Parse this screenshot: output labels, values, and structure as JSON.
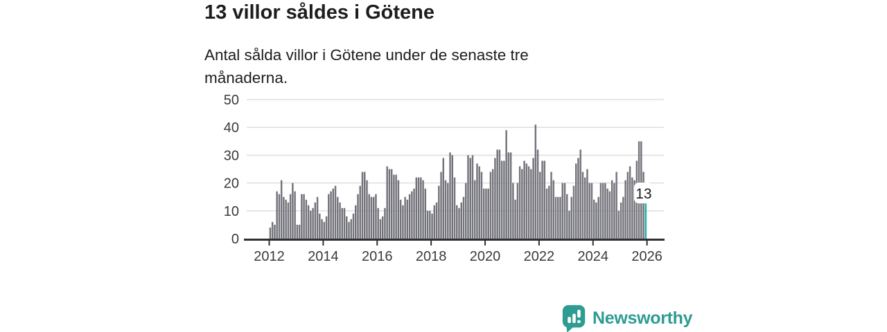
{
  "header": {
    "title": "13 villor såldes i Götene",
    "subtitle_line1": "Antal sålda villor i Götene under de senaste tre",
    "subtitle_line2": "månaderna."
  },
  "chart_data": {
    "type": "bar",
    "title": "13 villor såldes i Götene",
    "subtitle": "Antal sålda villor i Götene under de senaste tre månaderna.",
    "unit": "antal sålda villor per månad",
    "start_month": "2012-01",
    "frequency": "monthly",
    "values": [
      4,
      6,
      5,
      17,
      16,
      21,
      15,
      14,
      13,
      16,
      20,
      17,
      5,
      5,
      16,
      16,
      14,
      12,
      10,
      11,
      13,
      15,
      9,
      7,
      6,
      8,
      16,
      17,
      18,
      19,
      15,
      13,
      11,
      11,
      8,
      6,
      7,
      9,
      12,
      16,
      19,
      24,
      24,
      21,
      16,
      15,
      15,
      16,
      11,
      7,
      8,
      11,
      26,
      25,
      25,
      23,
      23,
      21,
      14,
      12,
      15,
      14,
      16,
      17,
      18,
      22,
      22,
      22,
      21,
      18,
      10,
      10,
      9,
      12,
      13,
      19,
      24,
      29,
      21,
      20,
      31,
      30,
      22,
      12,
      11,
      13,
      15,
      20,
      30,
      29,
      30,
      21,
      27,
      26,
      24,
      18,
      18,
      18,
      24,
      25,
      29,
      32,
      32,
      28,
      28,
      39,
      31,
      31,
      20,
      14,
      20,
      26,
      25,
      28,
      27,
      26,
      25,
      29,
      41,
      32,
      24,
      28,
      28,
      18,
      19,
      24,
      21,
      15,
      15,
      15,
      20,
      20,
      16,
      10,
      15,
      19,
      27,
      29,
      32,
      24,
      22,
      25,
      20,
      20,
      14,
      13,
      15,
      20,
      20,
      20,
      18,
      17,
      21,
      20,
      24,
      10,
      13,
      15,
      21,
      24,
      26,
      22,
      21,
      28,
      35,
      35,
      24,
      13
    ],
    "highlight": {
      "index": 167,
      "value": 13,
      "label": "13"
    },
    "y_ticks": [
      0,
      10,
      20,
      30,
      40,
      50
    ],
    "ylim": [
      0,
      50
    ],
    "x_tick_labels": [
      "2012",
      "2014",
      "2016",
      "2018",
      "2020",
      "2022",
      "2024",
      "2026"
    ],
    "grid": true,
    "legend": false,
    "colors": {
      "bar": "#73737b",
      "highlight_bar": "#17b1a6",
      "axis": "#2f2f2f",
      "gridline": "#e0e0e0",
      "tick_text": "#3a3a3a",
      "annotation_text": "#1a1a1a",
      "annotation_bg": "#ffffff"
    }
  },
  "logo": {
    "brand": "Newsworthy",
    "icon": "newsworthy-speech-bubble-bar-chart-icon",
    "color": "#2d9c92"
  }
}
